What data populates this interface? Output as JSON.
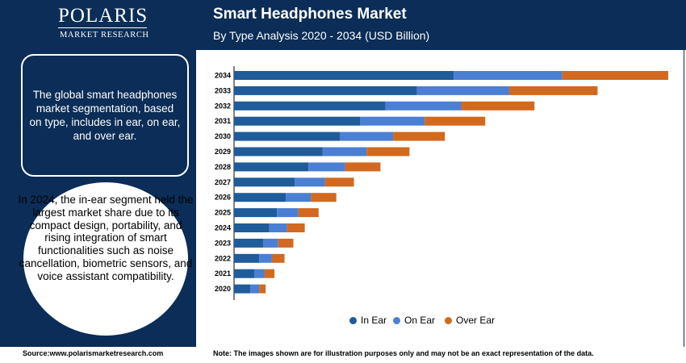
{
  "brand": {
    "name": "POLARIS",
    "sub": "MARKET RESEARCH"
  },
  "title": "Smart Headphones Market",
  "subtitle": "By Type Analysis 2020 - 2034 (USD Billion)",
  "summary_box": "The global smart headphones market segmentation, based on type, includes in ear, on ear, and over ear.",
  "circle_text": "In 2024, the in-ear segment held the largest market share due to its compact design, portability, and rising integration of smart functionalities such as noise cancellation, biometric sensors, and voice assistant compatibility.",
  "footer": {
    "source": "Source:www.polarismarketresearch.com",
    "note": "Note: The images shown are for illustration purposes only and may not be an exact representation of the data."
  },
  "colors": {
    "navy": "#0b2d57",
    "in_ear": "#1f5c99",
    "on_ear": "#4a7fd4",
    "over_ear": "#d2691e"
  },
  "chart_data": {
    "type": "bar",
    "orientation": "horizontal",
    "stacked": true,
    "categories": [
      "2034",
      "2033",
      "2032",
      "2031",
      "2030",
      "2029",
      "2028",
      "2027",
      "2026",
      "2025",
      "2024",
      "2023",
      "2022",
      "2021",
      "2020"
    ],
    "series": [
      {
        "name": "In Ear",
        "values": [
          17.4,
          14.5,
          12.0,
          10.0,
          8.4,
          7.0,
          5.9,
          4.8,
          4.1,
          3.4,
          2.8,
          2.3,
          2.0,
          1.6,
          1.3
        ]
      },
      {
        "name": "On Ear",
        "values": [
          8.6,
          7.3,
          6.0,
          5.1,
          4.2,
          3.5,
          2.9,
          2.4,
          2.0,
          1.7,
          1.4,
          1.2,
          1.0,
          0.8,
          0.7
        ]
      },
      {
        "name": "Over Ear",
        "values": [
          8.4,
          7.0,
          5.8,
          4.8,
          4.1,
          3.4,
          2.8,
          2.3,
          2.0,
          1.6,
          1.4,
          1.2,
          1.0,
          0.8,
          0.5
        ]
      }
    ],
    "legend_position": "bottom",
    "grid": false,
    "xlim": [
      0,
      35
    ]
  }
}
